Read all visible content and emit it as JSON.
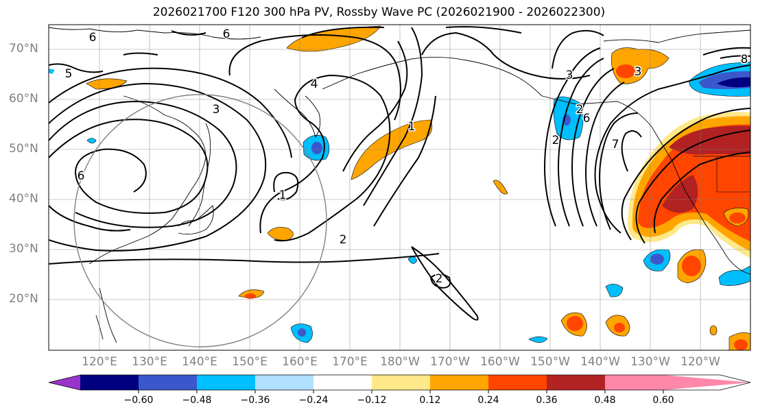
{
  "title": "2026021700 F120 300 hPa PV, Rossby Wave PC (2026021900 - 2026022300)",
  "lat_labels": [
    "70°N",
    "60°N",
    "50°N",
    "40°N",
    "30°N",
    "20°N"
  ],
  "lon_labels": [
    "120°E",
    "130°E",
    "140°E",
    "150°E",
    "160°E",
    "170°E",
    "180°W",
    "170°W",
    "160°W",
    "150°W",
    "140°W",
    "130°W",
    "120°W"
  ],
  "contour_labels": [
    "6",
    "5",
    "6",
    "3",
    "4",
    "1",
    "2",
    "3",
    "1",
    "6",
    "2",
    "6",
    "7",
    "3",
    "2",
    "2",
    "8"
  ],
  "colorbar": {
    "colors": [
      "#9933cc",
      "#000080",
      "#3b57cc",
      "#00bfff",
      "#b0e0ff",
      "#ffffff",
      "#ffe88a",
      "#ffa500",
      "#ff4500",
      "#b22222",
      "#ff88aa"
    ],
    "tick_labels": [
      "−0.60",
      "−0.48",
      "−0.36",
      "−0.24",
      "−0.12",
      "0.12",
      "0.24",
      "0.36",
      "0.48",
      "0.60"
    ]
  }
}
